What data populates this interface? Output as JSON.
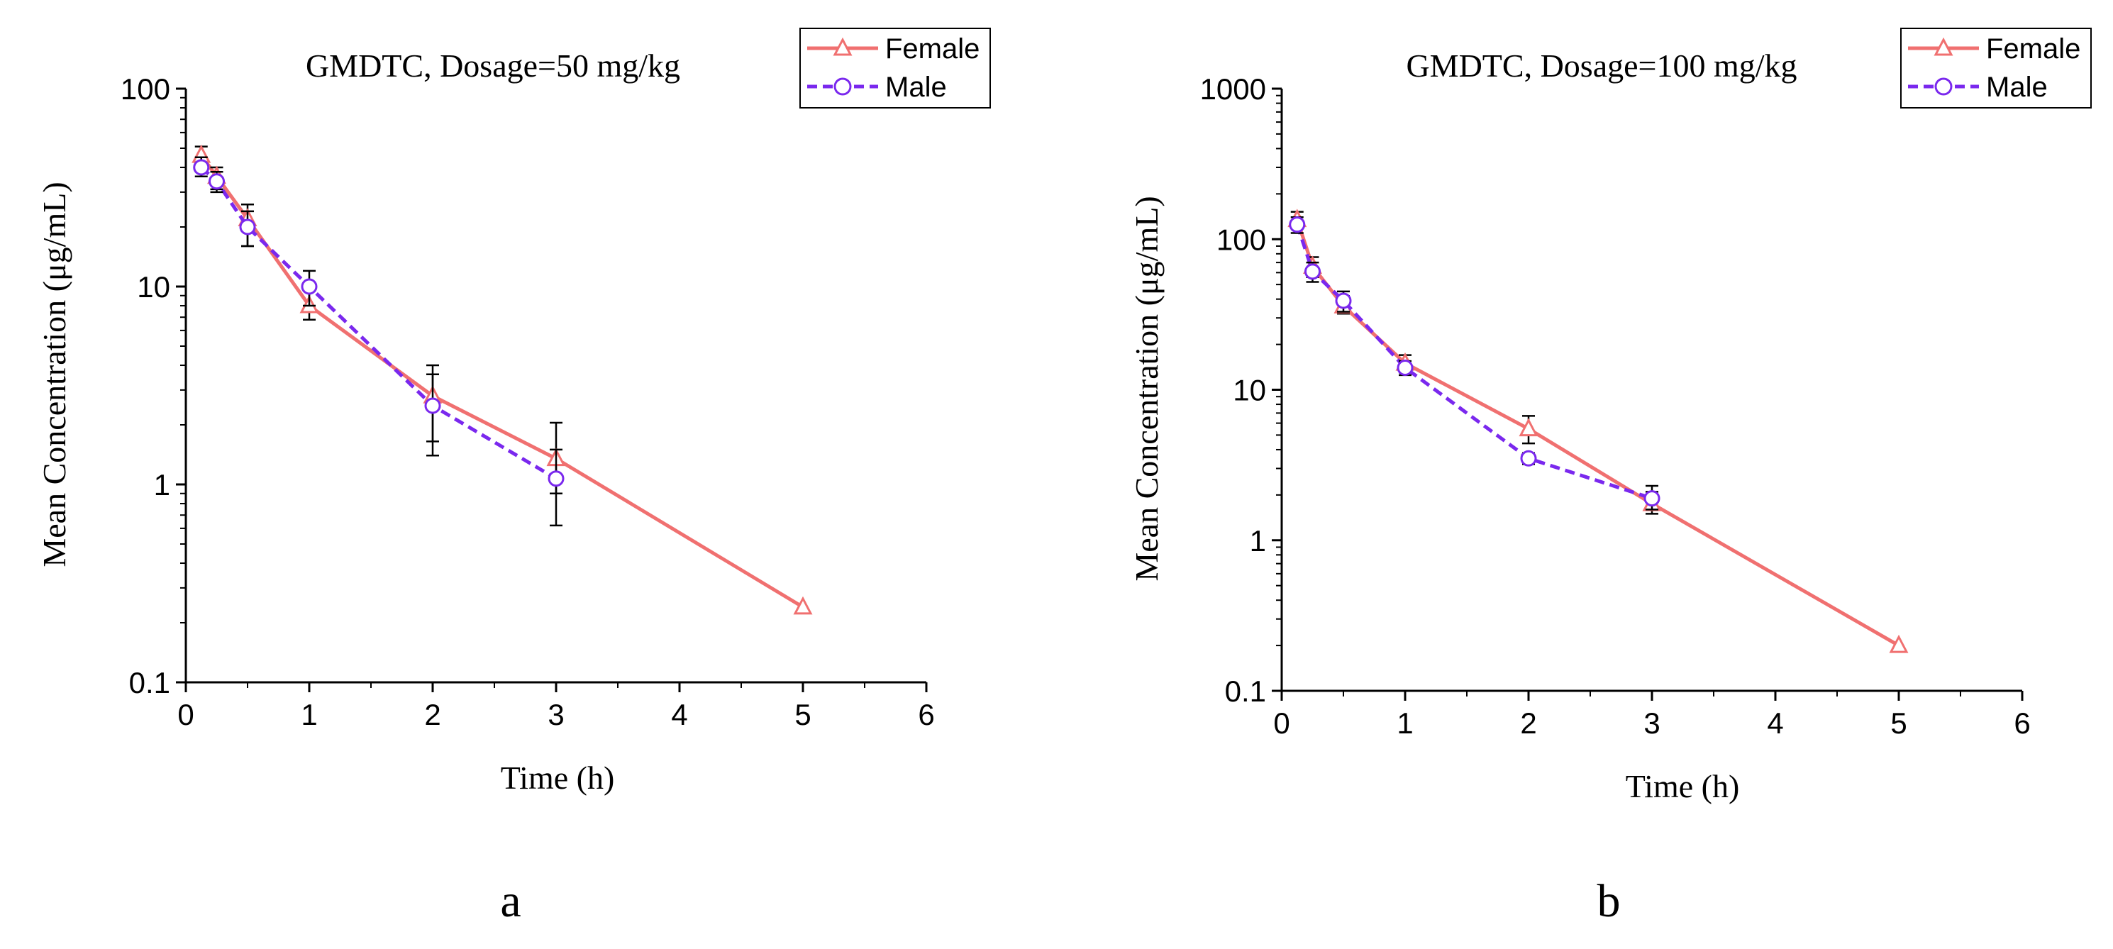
{
  "colors": {
    "female": "#f07070",
    "male": "#7a28ee",
    "axis": "#000000",
    "errorbar": "#000000"
  },
  "chart_data": [
    {
      "type": "line",
      "panel_label": "a",
      "title": "GMDTC, Dosage=50 mg/kg",
      "xlabel": "Time (h)",
      "ylabel": "Mean Concentration (μg/mL)",
      "xlim": [
        0,
        6
      ],
      "ylim": [
        0.1,
        100
      ],
      "yscale": "log",
      "x_ticks": [
        "0",
        "1",
        "2",
        "3",
        "4",
        "5",
        "6"
      ],
      "y_ticks": [
        "0.1",
        "1",
        "10",
        "100"
      ],
      "legend_position": "top-right",
      "series": [
        {
          "name": "Female",
          "marker": "triangle",
          "line": "solid",
          "x": [
            0.125,
            0.25,
            0.5,
            1,
            2,
            3,
            5
          ],
          "y": [
            46,
            36,
            22,
            8,
            2.8,
            1.35,
            0.24
          ],
          "err_low": [
            41,
            31,
            16,
            6.8,
            1.65,
            0.9,
            null
          ],
          "err_high": [
            51,
            40,
            26,
            9.5,
            4.0,
            2.05,
            null
          ]
        },
        {
          "name": "Male",
          "marker": "circle",
          "line": "dashed",
          "x": [
            0.125,
            0.25,
            0.5,
            1,
            2,
            3
          ],
          "y": [
            40,
            34,
            20,
            10,
            2.5,
            1.07
          ],
          "err_low": [
            36,
            30,
            16,
            8,
            1.4,
            0.62
          ],
          "err_high": [
            45,
            38,
            24,
            12,
            3.6,
            1.5
          ]
        }
      ]
    },
    {
      "type": "line",
      "panel_label": "b",
      "title": "GMDTC, Dosage=100 mg/kg",
      "xlabel": "Time (h)",
      "ylabel": "Mean Concentration (μg/mL)",
      "xlim": [
        0,
        6
      ],
      "ylim": [
        0.1,
        1000
      ],
      "yscale": "log",
      "x_ticks": [
        "0",
        "1",
        "2",
        "3",
        "4",
        "5",
        "6"
      ],
      "y_ticks": [
        "0.1",
        "1",
        "10",
        "100",
        "1000"
      ],
      "legend_position": "top-right",
      "series": [
        {
          "name": "Female",
          "marker": "triangle",
          "line": "solid",
          "x": [
            0.125,
            0.25,
            0.5,
            1,
            2,
            3,
            5
          ],
          "y": [
            135,
            66,
            36,
            15,
            5.5,
            1.75,
            0.2
          ],
          "err_low": [
            120,
            56,
            32,
            13,
            4.4,
            1.5,
            null
          ],
          "err_high": [
            152,
            76,
            42,
            17,
            6.7,
            2.1,
            null
          ]
        },
        {
          "name": "Male",
          "marker": "circle",
          "line": "dashed",
          "x": [
            0.125,
            0.25,
            0.5,
            1,
            2,
            3
          ],
          "y": [
            125,
            61,
            39,
            14,
            3.5,
            1.9
          ],
          "err_low": [
            110,
            52,
            33,
            12.5,
            3.2,
            1.6
          ],
          "err_high": [
            140,
            70,
            45,
            15.5,
            3.8,
            2.3
          ]
        }
      ]
    }
  ]
}
